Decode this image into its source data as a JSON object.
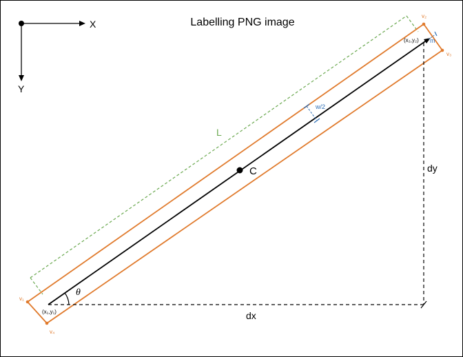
{
  "title": "Labelling PNG image",
  "axes": {
    "x_label": "X",
    "y_label": "Y"
  },
  "labels": {
    "length": "L",
    "center": "C",
    "half_width": "w/2",
    "margin": "m",
    "angle": "θ",
    "dx": "dx",
    "dy": "dy",
    "point1": "(x₁,y₁)",
    "point2": "(x₂,y₂)",
    "v1": "v₁",
    "v2": "v₂",
    "v3": "v₃",
    "v4": "v₄"
  },
  "colors": {
    "box": "#e07a2c",
    "length_dash": "#6aa84f",
    "width_marker": "#2f6fb6",
    "line": "#000000"
  }
}
